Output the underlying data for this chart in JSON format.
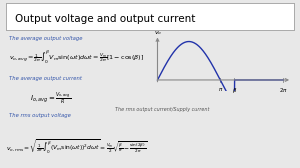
{
  "title": "Output voltage and output current",
  "bg_color": "#e8e8e8",
  "title_bg": "#ffffff",
  "text_color": "#3355aa",
  "formula_color": "#000000",
  "axis_color": "#888888",
  "line_color": "#2233aa",
  "label_color": "#555555",
  "avg_voltage_label": "The average output voltage",
  "avg_current_label": "The average output current",
  "rms_voltage_label": "The rms output voltage",
  "rms_current_label": "The rms output current/Supply current",
  "beta": 3.85,
  "pi": 3.14159,
  "two_pi": 6.28318
}
